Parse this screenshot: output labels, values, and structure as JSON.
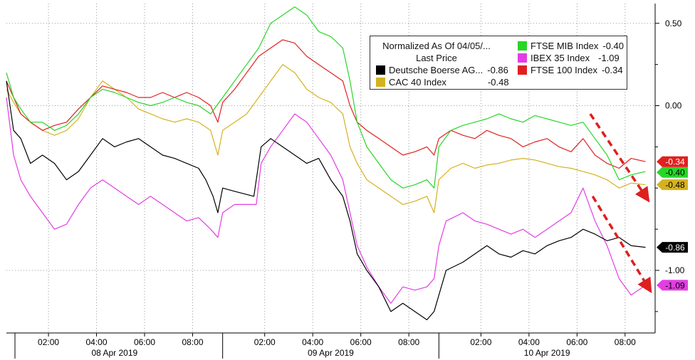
{
  "chart_data": {
    "type": "line",
    "legend": {
      "title_line1": "Normalized As Of 04/05/...",
      "title_line2": "Last Price",
      "placement": "top-right"
    },
    "y_ticks": [
      "0.50",
      "0.00",
      "-1.00"
    ],
    "ylim": [
      -1.38,
      0.62
    ],
    "x_ticks": [
      "02:00",
      "04:00",
      "06:00",
      "08:00",
      "02:00",
      "04:00",
      "06:00",
      "08:00",
      "02:00",
      "04:00",
      "06:00",
      "08:00"
    ],
    "x_tick_positions": [
      1.75,
      3.75,
      5.75,
      7.75,
      10.75,
      12.75,
      14.75,
      16.75,
      19.75,
      21.75,
      23.75,
      25.75
    ],
    "days": [
      {
        "label": "08 Apr 2019",
        "start": 0,
        "end": 9
      },
      {
        "label": "09 Apr 2019",
        "start": 9,
        "end": 18
      },
      {
        "label": "10 Apr 2019",
        "start": 18,
        "end": 27
      }
    ],
    "x_end": 26.6,
    "series": [
      {
        "name": "Deutsche Boerse AG...",
        "last": "-0.86",
        "color": "#000000",
        "label_text_color": "#ffffff",
        "points": [
          [
            0,
            0.15
          ],
          [
            0.3,
            -0.15
          ],
          [
            0.6,
            -0.2
          ],
          [
            1,
            -0.35
          ],
          [
            1.5,
            -0.3
          ],
          [
            2,
            -0.35
          ],
          [
            2.5,
            -0.45
          ],
          [
            3,
            -0.4
          ],
          [
            3.5,
            -0.3
          ],
          [
            4,
            -0.2
          ],
          [
            4.5,
            -0.25
          ],
          [
            5,
            -0.22
          ],
          [
            5.5,
            -0.2
          ],
          [
            6,
            -0.25
          ],
          [
            6.5,
            -0.3
          ],
          [
            7,
            -0.32
          ],
          [
            7.5,
            -0.35
          ],
          [
            8,
            -0.38
          ],
          [
            8.3,
            -0.45
          ],
          [
            8.6,
            -0.55
          ],
          [
            8.8,
            -0.65
          ],
          [
            9,
            -0.5
          ],
          [
            9.5,
            -0.52
          ],
          [
            10.3,
            -0.55
          ],
          [
            10.6,
            -0.25
          ],
          [
            11,
            -0.2
          ],
          [
            11.5,
            -0.25
          ],
          [
            12,
            -0.3
          ],
          [
            12.5,
            -0.35
          ],
          [
            13,
            -0.32
          ],
          [
            13.5,
            -0.45
          ],
          [
            14,
            -0.55
          ],
          [
            14.3,
            -0.7
          ],
          [
            14.6,
            -0.9
          ],
          [
            15,
            -1.0
          ],
          [
            15.5,
            -1.1
          ],
          [
            16,
            -1.25
          ],
          [
            16.5,
            -1.2
          ],
          [
            17,
            -1.25
          ],
          [
            17.5,
            -1.3
          ],
          [
            17.8,
            -1.25
          ],
          [
            18,
            -1.15
          ],
          [
            18.3,
            -1.0
          ],
          [
            19,
            -0.95
          ],
          [
            19.5,
            -0.9
          ],
          [
            20,
            -0.85
          ],
          [
            20.5,
            -0.9
          ],
          [
            21,
            -0.92
          ],
          [
            21.5,
            -0.88
          ],
          [
            22,
            -0.9
          ],
          [
            22.5,
            -0.85
          ],
          [
            23,
            -0.82
          ],
          [
            23.5,
            -0.8
          ],
          [
            24,
            -0.75
          ],
          [
            24.5,
            -0.78
          ],
          [
            25,
            -0.82
          ],
          [
            25.5,
            -0.8
          ],
          [
            26,
            -0.85
          ],
          [
            26.6,
            -0.86
          ]
        ]
      },
      {
        "name": "CAC 40 Index",
        "last": "-0.48",
        "color": "#d4b21f",
        "label_text_color": "#000000",
        "points": [
          [
            0,
            0.1
          ],
          [
            0.3,
            0.02
          ],
          [
            0.6,
            -0.05
          ],
          [
            1,
            -0.1
          ],
          [
            1.5,
            -0.15
          ],
          [
            2,
            -0.18
          ],
          [
            2.5,
            -0.15
          ],
          [
            3,
            -0.08
          ],
          [
            3.5,
            0.05
          ],
          [
            4,
            0.15
          ],
          [
            4.5,
            0.1
          ],
          [
            5,
            0.05
          ],
          [
            5.5,
            -0.02
          ],
          [
            6,
            -0.05
          ],
          [
            6.5,
            -0.08
          ],
          [
            7,
            -0.1
          ],
          [
            7.5,
            -0.08
          ],
          [
            8,
            -0.1
          ],
          [
            8.5,
            -0.15
          ],
          [
            8.8,
            -0.3
          ],
          [
            9,
            -0.15
          ],
          [
            9.5,
            -0.1
          ],
          [
            10,
            -0.05
          ],
          [
            10.5,
            0.05
          ],
          [
            11,
            0.15
          ],
          [
            11.5,
            0.25
          ],
          [
            12,
            0.2
          ],
          [
            12.5,
            0.1
          ],
          [
            13,
            0.05
          ],
          [
            13.5,
            0.02
          ],
          [
            14,
            -0.05
          ],
          [
            14.3,
            -0.25
          ],
          [
            14.6,
            -0.35
          ],
          [
            15,
            -0.45
          ],
          [
            15.5,
            -0.5
          ],
          [
            16,
            -0.55
          ],
          [
            16.5,
            -0.6
          ],
          [
            17,
            -0.58
          ],
          [
            17.5,
            -0.55
          ],
          [
            17.8,
            -0.65
          ],
          [
            18,
            -0.45
          ],
          [
            18.5,
            -0.38
          ],
          [
            19,
            -0.35
          ],
          [
            19.5,
            -0.38
          ],
          [
            20,
            -0.36
          ],
          [
            20.5,
            -0.35
          ],
          [
            21,
            -0.33
          ],
          [
            21.5,
            -0.32
          ],
          [
            22,
            -0.33
          ],
          [
            22.5,
            -0.35
          ],
          [
            23,
            -0.37
          ],
          [
            23.5,
            -0.38
          ],
          [
            24,
            -0.4
          ],
          [
            24.5,
            -0.42
          ],
          [
            25,
            -0.45
          ],
          [
            25.5,
            -0.5
          ],
          [
            26,
            -0.47
          ],
          [
            26.6,
            -0.48
          ]
        ]
      },
      {
        "name": "FTSE MIB Index",
        "last": "-0.40",
        "color": "#27d627",
        "label_text_color": "#000000",
        "points": [
          [
            0,
            0.2
          ],
          [
            0.3,
            0.05
          ],
          [
            0.6,
            -0.02
          ],
          [
            1,
            -0.1
          ],
          [
            1.5,
            -0.1
          ],
          [
            2,
            -0.15
          ],
          [
            2.5,
            -0.12
          ],
          [
            3,
            -0.05
          ],
          [
            3.5,
            0.05
          ],
          [
            4,
            0.1
          ],
          [
            4.5,
            0.08
          ],
          [
            5,
            0.05
          ],
          [
            5.5,
            0.02
          ],
          [
            6,
            0.0
          ],
          [
            6.5,
            0.02
          ],
          [
            7,
            0.05
          ],
          [
            7.5,
            0.02
          ],
          [
            8,
            0.0
          ],
          [
            8.5,
            -0.05
          ],
          [
            9,
            0.05
          ],
          [
            9.5,
            0.15
          ],
          [
            10,
            0.25
          ],
          [
            10.5,
            0.35
          ],
          [
            11,
            0.5
          ],
          [
            11.5,
            0.55
          ],
          [
            12,
            0.6
          ],
          [
            12.5,
            0.55
          ],
          [
            13,
            0.45
          ],
          [
            13.5,
            0.42
          ],
          [
            14,
            0.35
          ],
          [
            14.3,
            0.15
          ],
          [
            14.6,
            -0.1
          ],
          [
            15,
            -0.25
          ],
          [
            15.5,
            -0.35
          ],
          [
            16,
            -0.45
          ],
          [
            16.5,
            -0.5
          ],
          [
            17,
            -0.48
          ],
          [
            17.5,
            -0.45
          ],
          [
            17.8,
            -0.5
          ],
          [
            18,
            -0.25
          ],
          [
            18.5,
            -0.15
          ],
          [
            19,
            -0.12
          ],
          [
            19.5,
            -0.1
          ],
          [
            20,
            -0.08
          ],
          [
            20.5,
            -0.05
          ],
          [
            21,
            -0.08
          ],
          [
            21.5,
            -0.1
          ],
          [
            22,
            -0.06
          ],
          [
            22.5,
            -0.08
          ],
          [
            23,
            -0.1
          ],
          [
            23.5,
            -0.12
          ],
          [
            24,
            -0.1
          ],
          [
            24.5,
            -0.2
          ],
          [
            25,
            -0.3
          ],
          [
            25.5,
            -0.45
          ],
          [
            26,
            -0.42
          ],
          [
            26.6,
            -0.4
          ]
        ]
      },
      {
        "name": "IBEX 35 Index",
        "last": "-1.09",
        "color": "#e33de3",
        "label_text_color": "#000000",
        "points": [
          [
            0,
            0.05
          ],
          [
            0.3,
            -0.3
          ],
          [
            0.6,
            -0.45
          ],
          [
            1,
            -0.55
          ],
          [
            1.5,
            -0.65
          ],
          [
            2,
            -0.75
          ],
          [
            2.5,
            -0.72
          ],
          [
            3,
            -0.6
          ],
          [
            3.5,
            -0.5
          ],
          [
            4,
            -0.45
          ],
          [
            4.5,
            -0.5
          ],
          [
            5,
            -0.55
          ],
          [
            5.5,
            -0.6
          ],
          [
            6,
            -0.55
          ],
          [
            6.5,
            -0.6
          ],
          [
            7,
            -0.65
          ],
          [
            7.5,
            -0.7
          ],
          [
            8,
            -0.68
          ],
          [
            8.5,
            -0.75
          ],
          [
            8.8,
            -0.8
          ],
          [
            9,
            -0.65
          ],
          [
            9.5,
            -0.6
          ],
          [
            10,
            -0.6
          ],
          [
            10.4,
            -0.6
          ],
          [
            10.6,
            -0.35
          ],
          [
            11,
            -0.25
          ],
          [
            11.5,
            -0.15
          ],
          [
            12,
            -0.05
          ],
          [
            12.5,
            -0.1
          ],
          [
            13,
            -0.2
          ],
          [
            13.5,
            -0.3
          ],
          [
            14,
            -0.45
          ],
          [
            14.3,
            -0.65
          ],
          [
            14.6,
            -0.85
          ],
          [
            15,
            -0.98
          ],
          [
            15.5,
            -1.1
          ],
          [
            16,
            -1.2
          ],
          [
            16.5,
            -1.1
          ],
          [
            17,
            -1.12
          ],
          [
            17.5,
            -1.1
          ],
          [
            17.8,
            -1.05
          ],
          [
            18,
            -0.85
          ],
          [
            18.3,
            -0.7
          ],
          [
            19,
            -0.65
          ],
          [
            19.5,
            -0.7
          ],
          [
            20,
            -0.72
          ],
          [
            20.5,
            -0.75
          ],
          [
            21,
            -0.78
          ],
          [
            21.5,
            -0.75
          ],
          [
            22,
            -0.8
          ],
          [
            22.5,
            -0.75
          ],
          [
            23,
            -0.7
          ],
          [
            23.5,
            -0.65
          ],
          [
            24,
            -0.5
          ],
          [
            24.5,
            -0.7
          ],
          [
            25,
            -0.85
          ],
          [
            25.5,
            -1.05
          ],
          [
            26,
            -1.15
          ],
          [
            26.6,
            -1.09
          ]
        ]
      },
      {
        "name": "FTSE 100 Index",
        "last": "-0.34",
        "color": "#e02020",
        "label_text_color": "#ffffff",
        "points": [
          [
            0,
            0.15
          ],
          [
            0.3,
            0.05
          ],
          [
            0.6,
            -0.05
          ],
          [
            1,
            -0.1
          ],
          [
            1.5,
            -0.15
          ],
          [
            2,
            -0.12
          ],
          [
            2.5,
            -0.1
          ],
          [
            3,
            -0.02
          ],
          [
            3.5,
            0.05
          ],
          [
            4,
            0.12
          ],
          [
            4.5,
            0.1
          ],
          [
            5,
            0.08
          ],
          [
            5.5,
            0.05
          ],
          [
            6,
            0.05
          ],
          [
            6.5,
            0.08
          ],
          [
            7,
            0.05
          ],
          [
            7.5,
            0.08
          ],
          [
            8,
            0.05
          ],
          [
            8.5,
            0.0
          ],
          [
            8.8,
            -0.1
          ],
          [
            9,
            0.02
          ],
          [
            9.5,
            0.1
          ],
          [
            10,
            0.2
          ],
          [
            10.5,
            0.3
          ],
          [
            11,
            0.35
          ],
          [
            11.5,
            0.4
          ],
          [
            12,
            0.38
          ],
          [
            12.5,
            0.3
          ],
          [
            13,
            0.25
          ],
          [
            13.5,
            0.2
          ],
          [
            14,
            0.15
          ],
          [
            14.3,
            0.0
          ],
          [
            14.6,
            -0.1
          ],
          [
            15,
            -0.15
          ],
          [
            15.5,
            -0.2
          ],
          [
            16,
            -0.25
          ],
          [
            16.5,
            -0.3
          ],
          [
            17,
            -0.28
          ],
          [
            17.5,
            -0.25
          ],
          [
            17.8,
            -0.3
          ],
          [
            18,
            -0.2
          ],
          [
            18.5,
            -0.15
          ],
          [
            19,
            -0.18
          ],
          [
            19.5,
            -0.2
          ],
          [
            20,
            -0.15
          ],
          [
            20.5,
            -0.18
          ],
          [
            21,
            -0.2
          ],
          [
            21.5,
            -0.25
          ],
          [
            22,
            -0.22
          ],
          [
            22.5,
            -0.2
          ],
          [
            23,
            -0.25
          ],
          [
            23.5,
            -0.28
          ],
          [
            24,
            -0.2
          ],
          [
            24.5,
            -0.3
          ],
          [
            25,
            -0.35
          ],
          [
            25.5,
            -0.38
          ],
          [
            26,
            -0.32
          ],
          [
            26.6,
            -0.34
          ]
        ]
      }
    ],
    "annotations": [
      {
        "type": "arrow",
        "color": "#dd1f1f",
        "from": [
          24.3,
          -0.05
        ],
        "to": [
          26.6,
          -0.55
        ]
      },
      {
        "type": "arrow",
        "color": "#dd1f1f",
        "from": [
          24.4,
          -0.55
        ],
        "to": [
          26.7,
          -1.1
        ]
      }
    ]
  }
}
